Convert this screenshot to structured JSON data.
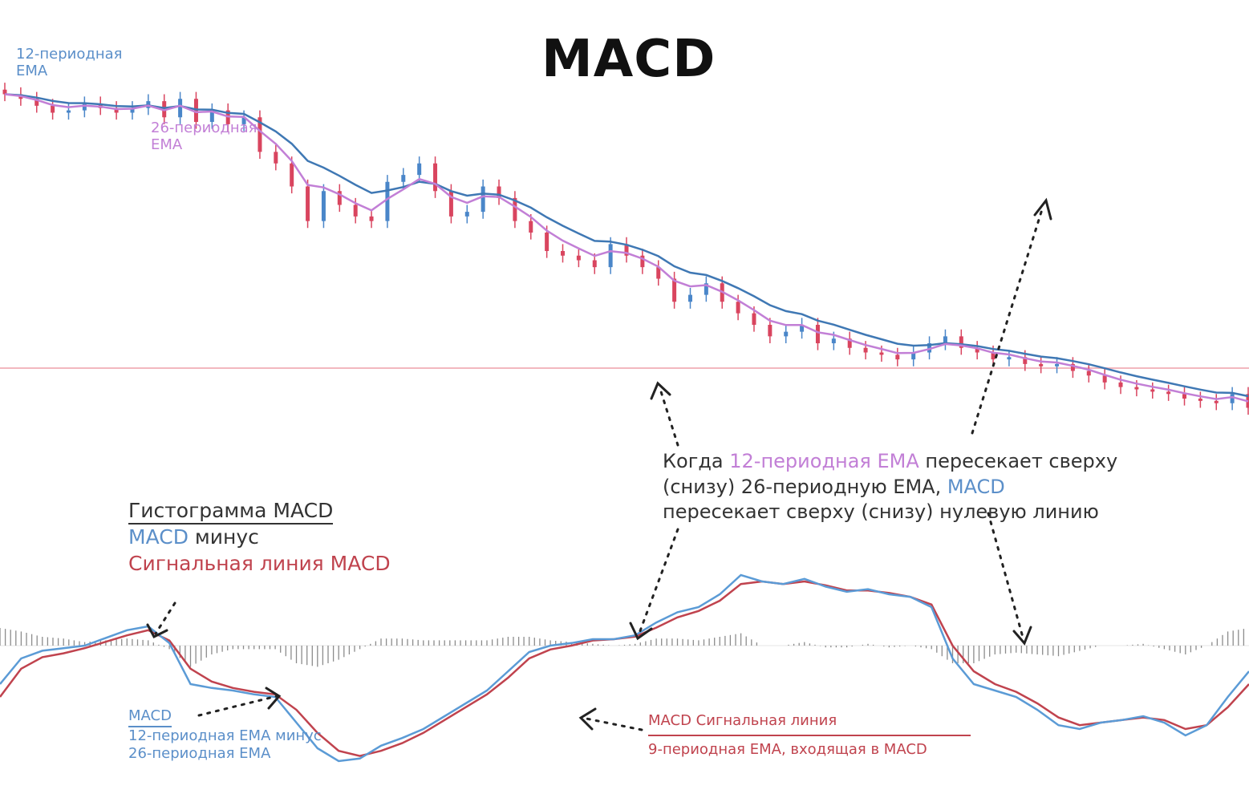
{
  "title": "MACD",
  "labels": {
    "ema12": [
      "12-периодная",
      "EMA"
    ],
    "ema26": [
      "26-периодная",
      "EMA"
    ]
  },
  "annotation": {
    "p1": "Когда ",
    "p2": "12-периодная EMA",
    "p3": " пересекает сверху",
    "p4": "(снизу) 26-периодную EMA, ",
    "p5": "MACD",
    "p6": "пересекает сверху (снизу) нулевую линию"
  },
  "histogram_note": {
    "title": "Гистограмма MACD",
    "l2a": "MACD",
    "l2b": " минус",
    "l3": "Сигнальная линия MACD"
  },
  "macd_note": {
    "title": "MACD",
    "l2": "12-периодная EMA минус",
    "l3": "26-периодная EMA"
  },
  "signal_note": {
    "title": "MACD Сигнальная линия",
    "l2": "9-периодная EMA, входящая в MACD"
  },
  "colors": {
    "up_candle": "#4a86c9",
    "down_candle": "#d9455f",
    "ema12": "#c27fd6",
    "ema26": "#3f78b4",
    "macd": "#5b9bd6",
    "signal": "#c0434e",
    "histogram": "#8c8c8c",
    "zero_line": "#f2b8bf"
  },
  "chart_data": [
    {
      "type": "line",
      "x": [
        0,
        1,
        2,
        3,
        4,
        5,
        6,
        7,
        8,
        9,
        10,
        11,
        12,
        13,
        14,
        15,
        16,
        17,
        18,
        19,
        20,
        21,
        22,
        23,
        24,
        25,
        26,
        27,
        28,
        29,
        30,
        31,
        32,
        33,
        34,
        35,
        36,
        37,
        38,
        39,
        40,
        41,
        42,
        43,
        44,
        45,
        46,
        47,
        48,
        49,
        50,
        51,
        52,
        53,
        54,
        55,
        56,
        57,
        58,
        59,
        60,
        61,
        62,
        63,
        64,
        65,
        66,
        67,
        68,
        69,
        70,
        71,
        72,
        73,
        74,
        75,
        76,
        77,
        78
      ],
      "close": [
        130,
        128,
        125,
        122,
        123,
        126,
        124,
        122,
        124,
        127,
        120,
        128,
        118,
        123,
        117,
        120,
        105,
        100,
        90,
        75,
        88,
        82,
        77,
        75,
        92,
        95,
        100,
        88,
        77,
        79,
        90,
        85,
        75,
        70,
        62,
        60,
        58,
        55,
        65,
        60,
        55,
        50,
        40,
        43,
        48,
        40,
        35,
        30,
        25,
        27,
        30,
        22,
        24,
        20,
        18,
        17,
        15,
        18,
        22,
        25,
        20,
        18,
        15,
        16,
        13,
        12,
        13,
        10,
        8,
        5,
        3,
        2,
        1,
        0,
        -2,
        -3,
        -4,
        0,
        -6
      ],
      "ema12": [],
      "ema26": [],
      "series": [
        {
          "name": "12-периодная EMA"
        },
        {
          "name": "26-периодная EMA"
        }
      ]
    },
    {
      "type": "line",
      "series": [
        {
          "name": "MACD",
          "values": [
            -30,
            -10,
            -4,
            -2,
            0,
            6,
            12,
            15,
            2,
            -30,
            -33,
            -35,
            -38,
            -40,
            -60,
            -80,
            -90,
            -88,
            -78,
            -72,
            -65,
            -55,
            -45,
            -35,
            -20,
            -5,
            0,
            2,
            5,
            5,
            8,
            18,
            26,
            30,
            40,
            55,
            50,
            48,
            52,
            46,
            42,
            44,
            40,
            38,
            30,
            -10,
            -30,
            -35,
            -40,
            -50,
            -62,
            -65,
            -60,
            -58,
            -55,
            -60,
            -70,
            -62,
            -40,
            -20
          ]
        },
        {
          "name": "Сигнальная линия MACD",
          "values": [
            -40,
            -18,
            -9,
            -6,
            -2,
            3,
            8,
            12,
            4,
            -18,
            -28,
            -33,
            -36,
            -38,
            -50,
            -68,
            -82,
            -86,
            -82,
            -76,
            -68,
            -58,
            -48,
            -38,
            -25,
            -10,
            -3,
            0,
            4,
            5,
            7,
            14,
            22,
            27,
            35,
            48,
            50,
            48,
            50,
            47,
            43,
            43,
            41,
            38,
            32,
            0,
            -20,
            -30,
            -36,
            -45,
            -56,
            -62,
            -60,
            -58,
            -56,
            -58,
            -65,
            -62,
            -48,
            -30
          ]
        }
      ],
      "histogram": [
        10,
        8,
        5,
        4,
        2,
        3,
        4,
        3,
        -2,
        -12,
        -5,
        -2,
        -2,
        -2,
        -10,
        -12,
        -8,
        -2,
        4,
        4,
        3,
        3,
        3,
        3,
        5,
        5,
        3,
        2,
        1,
        0,
        1,
        4,
        4,
        3,
        5,
        7,
        0,
        0,
        2,
        -1,
        -1,
        1,
        -1,
        0,
        -2,
        -10,
        -10,
        -5,
        -4,
        -5,
        -6,
        -3,
        0,
        0,
        1,
        -2,
        -5,
        0,
        8,
        10
      ]
    }
  ]
}
